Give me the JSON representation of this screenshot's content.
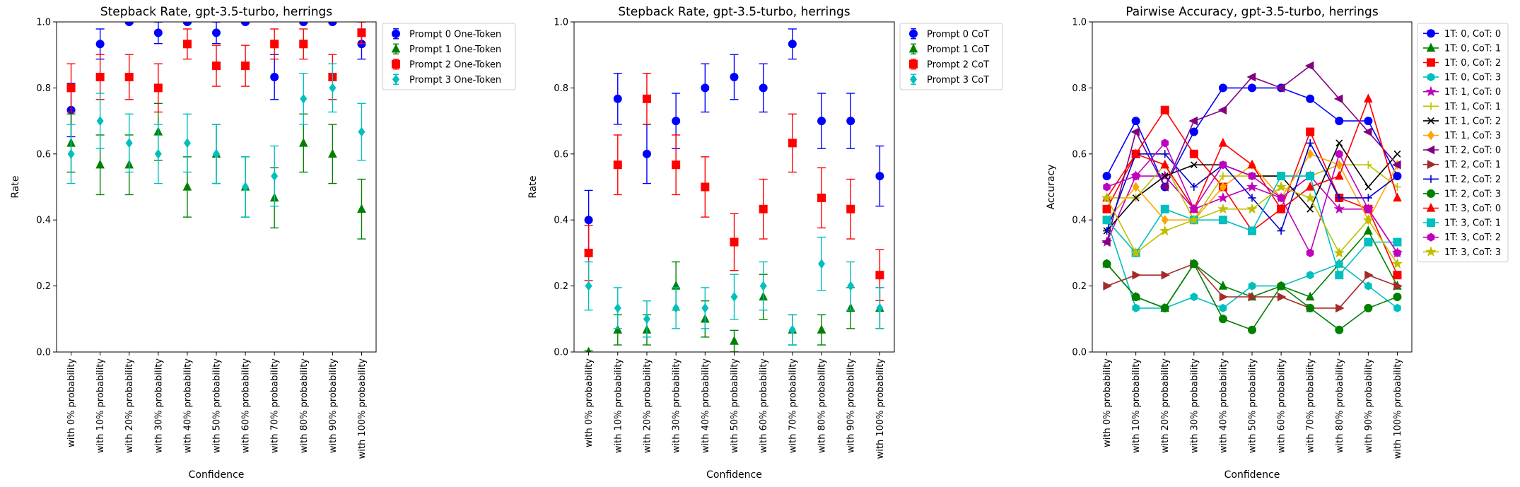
{
  "chart_data": [
    {
      "type": "scatter",
      "title": "Stepback Rate, gpt-3.5-turbo, herrings",
      "xlabel": "Confidence",
      "ylabel": "Rate",
      "ylim": [
        0,
        1
      ],
      "yticks": [
        "0.0",
        "0.2",
        "0.4",
        "0.6",
        "0.8",
        "1.0"
      ],
      "categories": [
        "with 0% probability",
        "with 10% probability",
        "with 20% probability",
        "with 30% probability",
        "with 40% probability",
        "with 50% probability",
        "with 60% probability",
        "with 70% probability",
        "with 80% probability",
        "with 90% probability",
        "with 100% probability"
      ],
      "legend_position": "outside-top-right",
      "series": [
        {
          "name": "Prompt 0 One-Token",
          "color": "#0000ff",
          "marker": "circle",
          "values": [
            0.733,
            0.933,
            1.0,
            0.967,
            1.0,
            0.967,
            1.0,
            0.833,
            1.0,
            1.0,
            0.933
          ]
        },
        {
          "name": "Prompt 1 One-Token",
          "color": "#008000",
          "marker": "triangle",
          "values": [
            0.633,
            0.567,
            0.567,
            0.667,
            0.5,
            0.6,
            0.5,
            0.467,
            0.633,
            0.6,
            0.433
          ]
        },
        {
          "name": "Prompt 2 One-Token",
          "color": "#ff0000",
          "marker": "square",
          "values": [
            0.8,
            0.833,
            0.833,
            0.8,
            0.933,
            0.867,
            0.867,
            0.933,
            0.933,
            0.833,
            0.967
          ]
        },
        {
          "name": "Prompt 3 One-Token",
          "color": "#00bfbf",
          "marker": "diamond",
          "values": [
            0.6,
            0.7,
            0.633,
            0.6,
            0.633,
            0.6,
            0.5,
            0.533,
            0.767,
            0.8,
            0.667
          ]
        }
      ]
    },
    {
      "type": "scatter",
      "title": "Stepback Rate, gpt-3.5-turbo, herrings",
      "xlabel": "Confidence",
      "ylabel": "Rate",
      "ylim": [
        0,
        1
      ],
      "yticks": [
        "0.0",
        "0.2",
        "0.4",
        "0.6",
        "0.8",
        "1.0"
      ],
      "categories": [
        "with 0% probability",
        "with 10% probability",
        "with 20% probability",
        "with 30% probability",
        "with 40% probability",
        "with 50% probability",
        "with 60% probability",
        "with 70% probability",
        "with 80% probability",
        "with 90% probability",
        "with 100% probability"
      ],
      "legend_position": "outside-top-right",
      "series": [
        {
          "name": "Prompt 0 CoT",
          "color": "#0000ff",
          "marker": "circle",
          "values": [
            0.4,
            0.767,
            0.6,
            0.7,
            0.8,
            0.833,
            0.8,
            0.933,
            0.7,
            0.7,
            0.533
          ]
        },
        {
          "name": "Prompt 1 CoT",
          "color": "#008000",
          "marker": "triangle",
          "values": [
            0.0,
            0.067,
            0.067,
            0.2,
            0.1,
            0.033,
            0.167,
            0.067,
            0.067,
            0.133,
            0.133
          ]
        },
        {
          "name": "Prompt 2 CoT",
          "color": "#ff0000",
          "marker": "square",
          "values": [
            0.3,
            0.567,
            0.767,
            0.567,
            0.5,
            0.333,
            0.433,
            0.633,
            0.467,
            0.433,
            0.233
          ]
        },
        {
          "name": "Prompt 3 CoT",
          "color": "#00bfbf",
          "marker": "diamond",
          "values": [
            0.2,
            0.133,
            0.1,
            0.133,
            0.133,
            0.167,
            0.2,
            0.067,
            0.267,
            0.2,
            0.133
          ]
        }
      ]
    },
    {
      "type": "line",
      "title": "Pairwise Accuracy, gpt-3.5-turbo, herrings",
      "xlabel": "Confidence",
      "ylabel": "Accuracy",
      "ylim": [
        0,
        1
      ],
      "yticks": [
        "0.0",
        "0.2",
        "0.4",
        "0.6",
        "0.8",
        "1.0"
      ],
      "categories": [
        "with 0% probability",
        "with 10% probability",
        "with 20% probability",
        "with 30% probability",
        "with 40% probability",
        "with 50% probability",
        "with 60% probability",
        "with 70% probability",
        "with 80% probability",
        "with 90% probability",
        "with 100% probability"
      ],
      "legend_position": "outside-top-right",
      "series": [
        {
          "name": "1T: 0, CoT: 0",
          "color": "#0000ff",
          "marker": "circle",
          "values": [
            0.533,
            0.7,
            0.5,
            0.667,
            0.8,
            0.8,
            0.8,
            0.767,
            0.7,
            0.7,
            0.533
          ]
        },
        {
          "name": "1T: 0, CoT: 1",
          "color": "#008000",
          "marker": "triangle",
          "values": [
            0.267,
            0.167,
            0.133,
            0.267,
            0.2,
            0.167,
            0.2,
            0.167,
            0.267,
            0.367,
            0.2
          ]
        },
        {
          "name": "1T: 0, CoT: 2",
          "color": "#ff0000",
          "marker": "square",
          "values": [
            0.433,
            0.6,
            0.733,
            0.6,
            0.5,
            0.367,
            0.433,
            0.667,
            0.467,
            0.433,
            0.233
          ]
        },
        {
          "name": "1T: 0, CoT: 3",
          "color": "#00bfbf",
          "marker": "hexagon",
          "values": [
            0.4,
            0.133,
            0.133,
            0.167,
            0.133,
            0.2,
            0.2,
            0.233,
            0.267,
            0.2,
            0.133
          ]
        },
        {
          "name": "1T: 1, CoT: 0",
          "color": "#bf00bf",
          "marker": "star",
          "values": [
            0.333,
            0.533,
            0.533,
            0.433,
            0.467,
            0.5,
            0.467,
            0.533,
            0.433,
            0.433,
            0.3
          ]
        },
        {
          "name": "1T: 1, CoT: 1",
          "color": "#bfbf00",
          "marker": "plus",
          "values": [
            0.467,
            0.467,
            0.567,
            0.4,
            0.533,
            0.533,
            0.533,
            0.533,
            0.567,
            0.567,
            0.5
          ]
        },
        {
          "name": "1T: 1, CoT: 2",
          "color": "#000000",
          "marker": "x",
          "values": [
            0.367,
            0.467,
            0.533,
            0.567,
            0.567,
            0.533,
            0.533,
            0.433,
            0.633,
            0.5,
            0.6
          ]
        },
        {
          "name": "1T: 1, CoT: 3",
          "color": "#ffa500",
          "marker": "diamond",
          "values": [
            0.4,
            0.5,
            0.4,
            0.4,
            0.5,
            0.567,
            0.467,
            0.6,
            0.567,
            0.4,
            0.567
          ]
        },
        {
          "name": "1T: 2, CoT: 0",
          "color": "#800080",
          "marker": "tri-left",
          "values": [
            0.333,
            0.667,
            0.5,
            0.7,
            0.733,
            0.833,
            0.8,
            0.867,
            0.767,
            0.667,
            0.567
          ]
        },
        {
          "name": "1T: 2, CoT: 1",
          "color": "#a52a2a",
          "marker": "tri-right",
          "values": [
            0.2,
            0.233,
            0.233,
            0.267,
            0.167,
            0.167,
            0.167,
            0.133,
            0.133,
            0.233,
            0.2
          ]
        },
        {
          "name": "1T: 2, CoT: 2",
          "color": "#0000cd",
          "marker": "plus",
          "values": [
            0.367,
            0.6,
            0.6,
            0.5,
            0.567,
            0.467,
            0.367,
            0.633,
            0.467,
            0.467,
            0.533
          ]
        },
        {
          "name": "1T: 2, CoT: 3",
          "color": "#008000",
          "marker": "circle",
          "values": [
            0.267,
            0.167,
            0.133,
            0.267,
            0.1,
            0.067,
            0.2,
            0.133,
            0.067,
            0.133,
            0.167
          ]
        },
        {
          "name": "1T: 3, CoT: 0",
          "color": "#ff0000",
          "marker": "triangle",
          "values": [
            0.467,
            0.6,
            0.567,
            0.433,
            0.633,
            0.567,
            0.433,
            0.5,
            0.533,
            0.767,
            0.467
          ]
        },
        {
          "name": "1T: 3, CoT: 1",
          "color": "#00bfbf",
          "marker": "square",
          "values": [
            0.4,
            0.3,
            0.433,
            0.4,
            0.4,
            0.367,
            0.533,
            0.533,
            0.233,
            0.333,
            0.333
          ]
        },
        {
          "name": "1T: 3, CoT: 2",
          "color": "#bf00bf",
          "marker": "hexagon",
          "values": [
            0.5,
            0.533,
            0.633,
            0.433,
            0.567,
            0.533,
            0.467,
            0.3,
            0.6,
            0.433,
            0.3
          ]
        },
        {
          "name": "1T: 3, CoT: 3",
          "color": "#bfbf00",
          "marker": "star",
          "values": [
            0.467,
            0.3,
            0.367,
            0.4,
            0.433,
            0.433,
            0.5,
            0.467,
            0.3,
            0.4,
            0.267
          ]
        }
      ]
    }
  ]
}
